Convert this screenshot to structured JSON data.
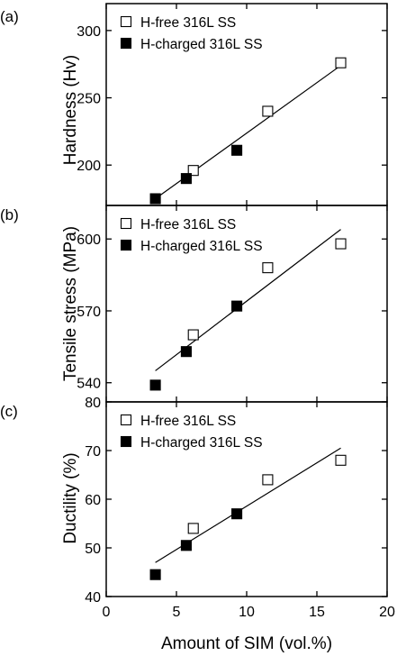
{
  "chart_data": [
    {
      "type": "scatter",
      "panel_label": "(a)",
      "ylabel": "Hardness (Hv)",
      "xlim": [
        0,
        20
      ],
      "ylim": [
        170,
        320
      ],
      "yticks": [
        200,
        250,
        300
      ],
      "series": [
        {
          "name": "H-free 316L SS",
          "marker": "open-square",
          "x": [
            6.2,
            11.5,
            16.7
          ],
          "y": [
            196,
            240,
            276
          ]
        },
        {
          "name": "H-charged 316L SS",
          "marker": "filled-square",
          "x": [
            3.5,
            5.7,
            9.3
          ],
          "y": [
            175,
            190,
            211
          ]
        }
      ],
      "fit_line": {
        "x": [
          3.5,
          16.7
        ],
        "y": [
          175,
          274
        ]
      },
      "legend": "top-left"
    },
    {
      "type": "scatter",
      "panel_label": "(b)",
      "ylabel": "Tensile stress (MPa)",
      "xlim": [
        0,
        20
      ],
      "ylim": [
        532,
        614
      ],
      "yticks": [
        540,
        570,
        600
      ],
      "series": [
        {
          "name": "H-free 316L SS",
          "marker": "open-square",
          "x": [
            6.2,
            11.5,
            16.7
          ],
          "y": [
            560,
            588,
            598
          ]
        },
        {
          "name": "H-charged 316L SS",
          "marker": "filled-square",
          "x": [
            3.5,
            5.7,
            9.3
          ],
          "y": [
            539,
            553,
            572
          ]
        }
      ],
      "fit_line": {
        "x": [
          3.5,
          16.7
        ],
        "y": [
          545,
          604
        ]
      },
      "legend": "top-left"
    },
    {
      "type": "scatter",
      "panel_label": "(c)",
      "ylabel": "Ductility (%)",
      "xlim": [
        0,
        20
      ],
      "ylim": [
        40,
        80
      ],
      "yticks": [
        40,
        50,
        60,
        70,
        80
      ],
      "series": [
        {
          "name": "H-free 316L SS",
          "marker": "open-square",
          "x": [
            6.2,
            11.5,
            16.7
          ],
          "y": [
            54,
            64,
            68
          ]
        },
        {
          "name": "H-charged 316L SS",
          "marker": "filled-square",
          "x": [
            3.5,
            5.7,
            9.3
          ],
          "y": [
            44.5,
            50.5,
            57
          ]
        }
      ],
      "fit_line": {
        "x": [
          3.5,
          16.7
        ],
        "y": [
          47,
          70.5
        ]
      },
      "legend": "top-left"
    }
  ],
  "x_axis": {
    "xlabel": "Amount of SIM (vol.%)",
    "xticks": [
      0,
      5,
      10,
      15,
      20
    ]
  }
}
